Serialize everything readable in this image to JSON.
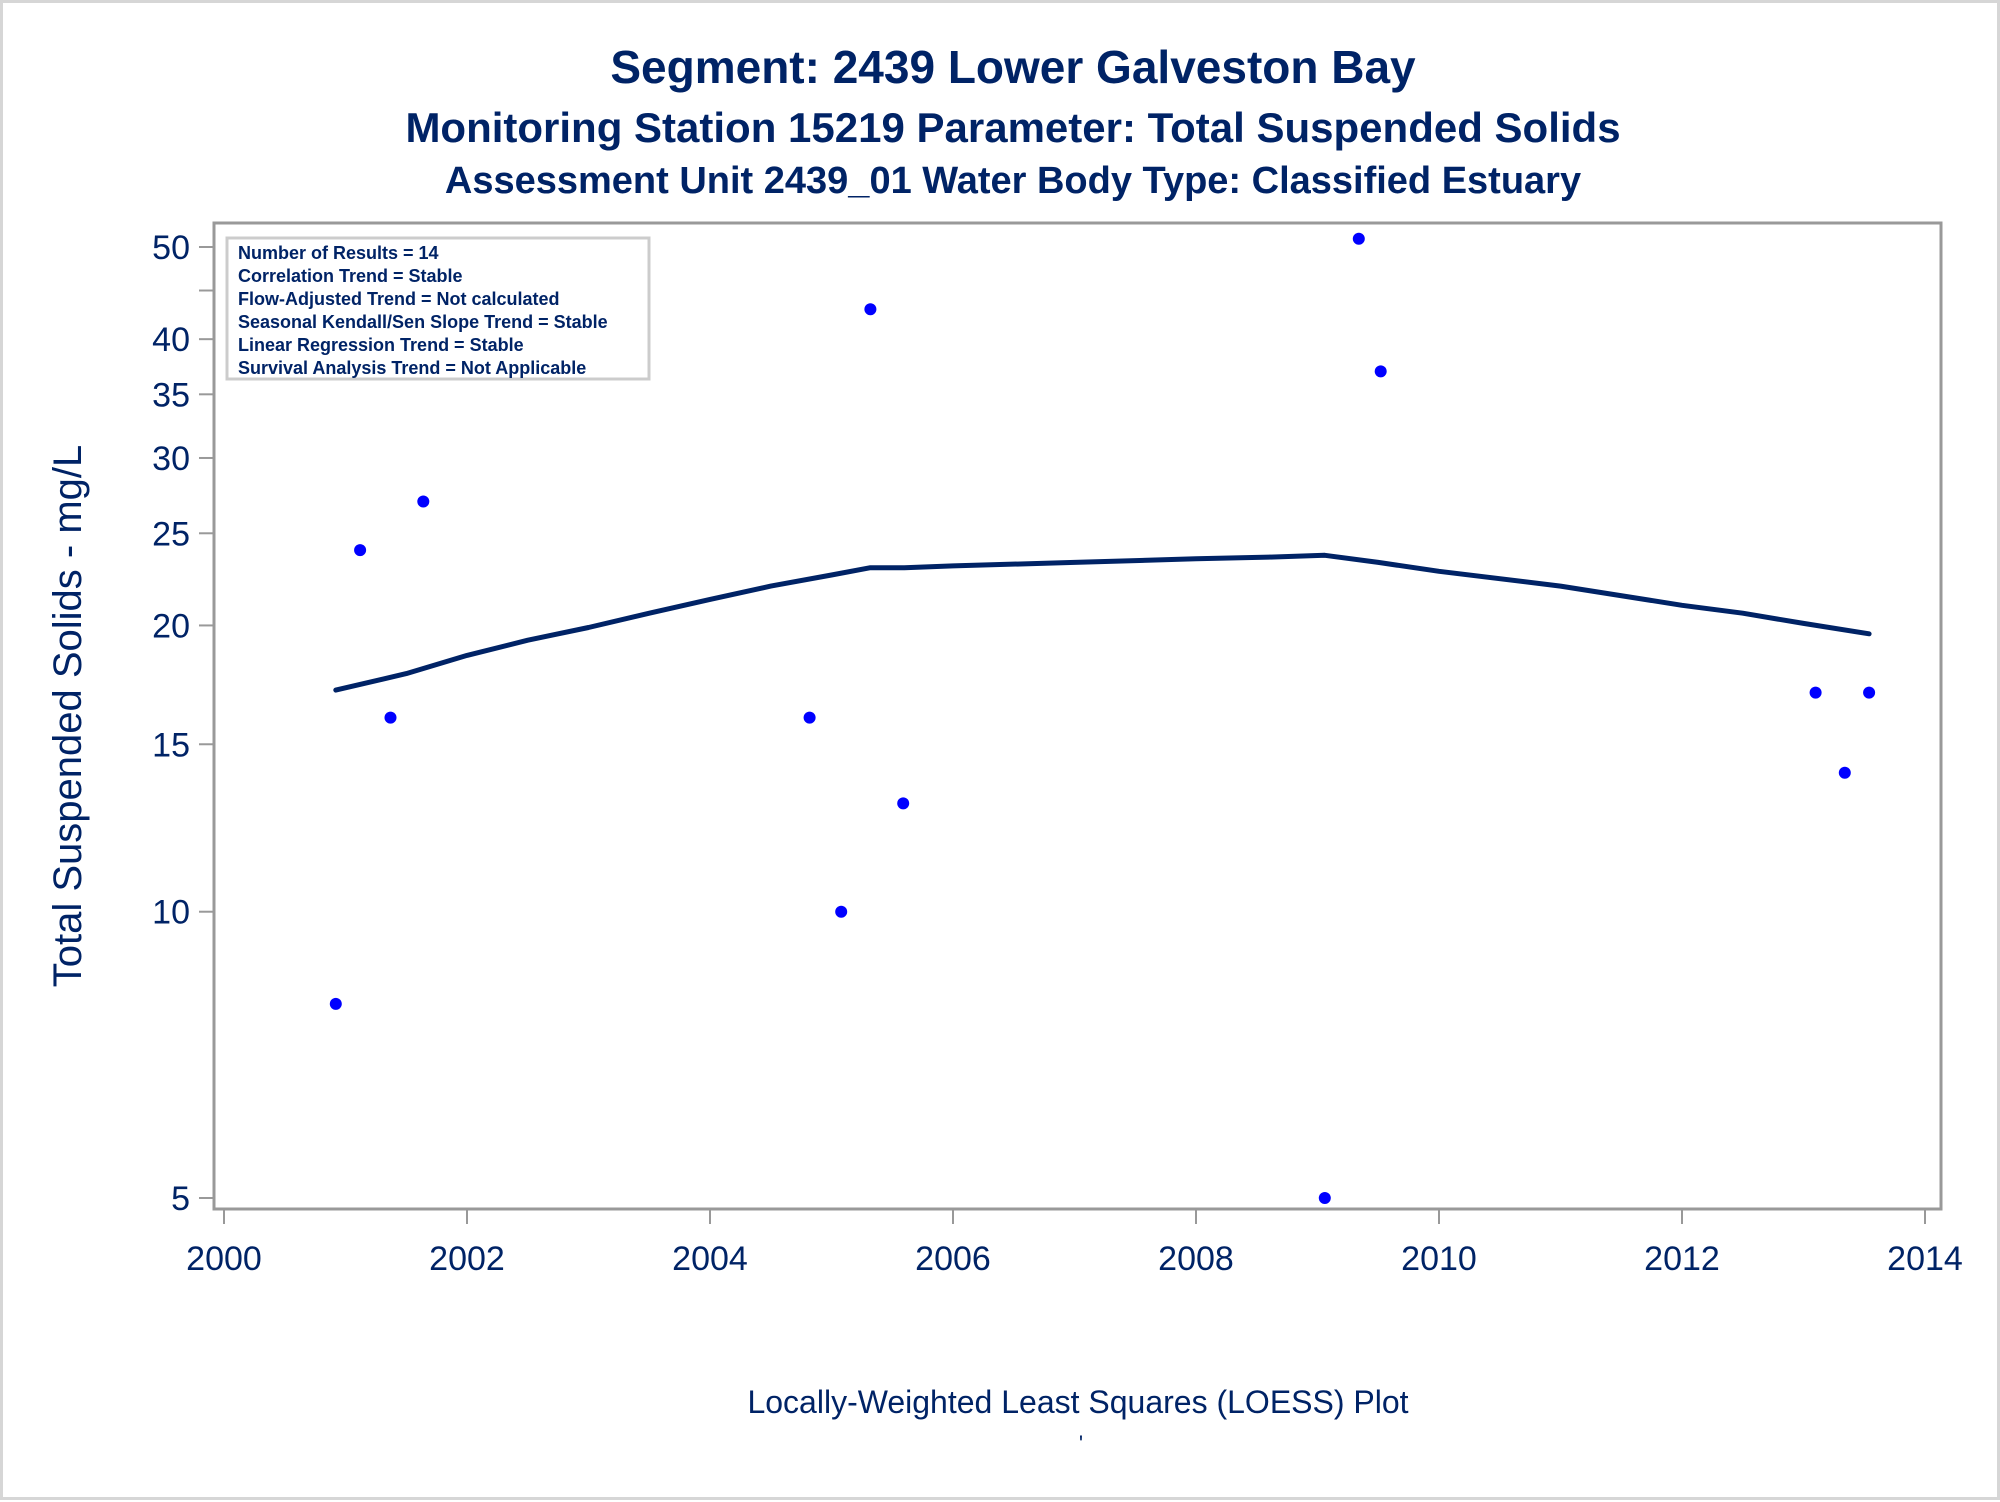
{
  "chart_data": {
    "type": "scatter",
    "title": "Segment: 2439  Lower Galveston Bay",
    "subtitle": "Monitoring Station 15219 Parameter: Total Suspended Solids",
    "subtitle2": "Assessment Unit 2439_01   Water Body Type: Classified Estuary",
    "xlabel": "Locally-Weighted Least Squares (LOESS) Plot",
    "ylabel": "Total Suspended Solids - mg/L",
    "footnote_mark": "'",
    "y_scale": "log",
    "xlim": [
      2000,
      2014
    ],
    "ylim": [
      5,
      52
    ],
    "x_ticks": [
      2000,
      2002,
      2004,
      2006,
      2008,
      2010,
      2012,
      2014
    ],
    "x_tick_labels": [
      "2000",
      "2002",
      "2004",
      "2006",
      "2008",
      "2010",
      "2012",
      "2014"
    ],
    "y_ticks": [
      5,
      10,
      15,
      20,
      25,
      30,
      35,
      40,
      45,
      50
    ],
    "y_tick_labels": [
      "5",
      "10",
      "15",
      "20",
      "25",
      "30",
      "35",
      "40",
      "",
      "50"
    ],
    "colors": {
      "points": "#0000ff",
      "loess_line": "#002366",
      "text": "#002366",
      "axis": "#999999"
    },
    "stats_box": {
      "placement": "top-left",
      "lines": [
        "Number of Results = 14",
        "Correlation Trend = Stable",
        "Flow-Adjusted Trend = Not calculated",
        "Seasonal Kendall/Sen Slope Trend = Stable",
        "Linear Regression Trend = Stable",
        "Survival Analysis Trend = Not Applicable"
      ]
    },
    "series": [
      {
        "kind": "points",
        "x": [
          2000.92,
          2001.12,
          2001.37,
          2001.64,
          2004.82,
          2005.08,
          2005.32,
          2005.59,
          2009.06,
          2009.34,
          2009.52,
          2013.1,
          2013.34,
          2013.54
        ],
        "y": [
          8,
          24,
          16,
          27,
          16,
          10,
          43,
          13,
          5,
          51,
          37,
          17,
          14,
          17
        ]
      },
      {
        "kind": "line",
        "x": [
          2000.92,
          2001.5,
          2002,
          2002.5,
          2003,
          2003.5,
          2004,
          2004.5,
          2005,
          2005.32,
          2005.6,
          2006,
          2007,
          2008,
          2008.6,
          2009.06,
          2009.5,
          2010,
          2011,
          2012,
          2012.5,
          2013,
          2013.54
        ],
        "y": [
          17.1,
          17.8,
          18.6,
          19.3,
          19.9,
          20.6,
          21.3,
          22.0,
          22.6,
          23.0,
          23.0,
          23.1,
          23.3,
          23.5,
          23.6,
          23.7,
          23.3,
          22.8,
          22.0,
          21.0,
          20.6,
          20.1,
          19.6
        ]
      }
    ]
  }
}
